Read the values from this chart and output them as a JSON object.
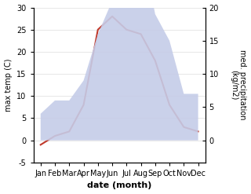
{
  "months": [
    "Jan",
    "Feb",
    "Mar",
    "Apr",
    "May",
    "Jun",
    "Jul",
    "Aug",
    "Sep",
    "Oct",
    "Nov",
    "Dec"
  ],
  "temperature": [
    -1,
    1,
    2,
    8,
    25,
    28,
    25,
    24,
    18,
    8,
    3,
    2
  ],
  "precipitation": [
    4,
    6,
    6,
    9,
    16,
    21,
    30,
    30,
    19,
    15,
    7,
    7
  ],
  "temp_color": "#c0392b",
  "precip_fill_color": "#c5cce8",
  "xlabel": "date (month)",
  "ylabel_left": "max temp (C)",
  "ylabel_right": "med. precipitation\n(kg/m2)",
  "ylim_left": [
    -5,
    30
  ],
  "ylim_right": [
    0,
    20
  ],
  "background_color": "#ffffff",
  "left_ticks": [
    -5,
    0,
    5,
    10,
    15,
    20,
    25,
    30
  ],
  "right_ticks": [
    0,
    5,
    10,
    15,
    20
  ]
}
